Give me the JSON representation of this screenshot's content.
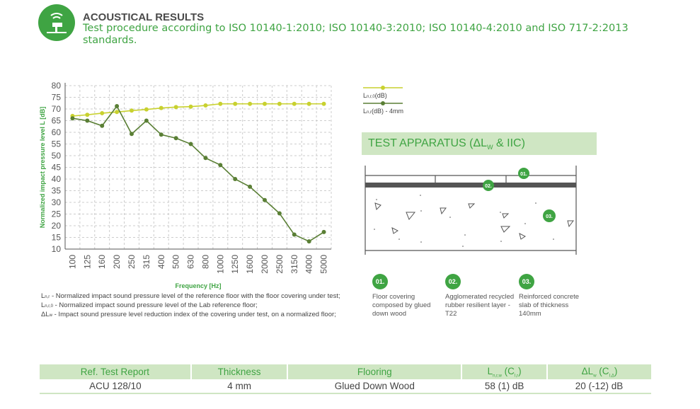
{
  "header": {
    "title": "ACOUSTICAL RESULTS",
    "subtitle": "Test procedure according to ISO 10140-1:2010; ISO 10140-3:2010; ISO 10140-4:2010 and ISO 717-2:2013 standards.",
    "icon": "hammer-impact-sound-icon"
  },
  "colors": {
    "brand": "#3fa443",
    "reference": "#c8d12f",
    "test": "#5a7f35",
    "band": "#cfe6c3"
  },
  "chart_data": {
    "type": "line",
    "xlabel": "Frequency [Hz]",
    "ylabel": "Normalized impact pressure level L [dB]",
    "ylim": [
      10,
      80
    ],
    "yticks": [
      80,
      75,
      70,
      65,
      60,
      55,
      50,
      45,
      40,
      35,
      30,
      25,
      20,
      15,
      10
    ],
    "grid": true,
    "legend_position": "right",
    "categories": [
      "100",
      "125",
      "160",
      "200",
      "250",
      "315",
      "400",
      "500",
      "630",
      "800",
      "1000",
      "1250",
      "1600",
      "2000",
      "2500",
      "3150",
      "4000",
      "5000"
    ],
    "series": [
      {
        "name": "L",
        "name_sub": "n,r,0",
        "name_suffix": "(dB)",
        "values": [
          67,
          67.5,
          68.2,
          68.7,
          69.3,
          69.8,
          70.4,
          70.8,
          71,
          71.5,
          72.2,
          72.2,
          72.2,
          72.2,
          72.2,
          72.2,
          72.2,
          72.2
        ]
      },
      {
        "name": "L",
        "name_sub": "n,r",
        "name_suffix": "(dB) - 4mm",
        "values": [
          66,
          65,
          62.8,
          71.2,
          59.3,
          65,
          59,
          57.5,
          55,
          49,
          46,
          40,
          36.7,
          31,
          25.3,
          16.2,
          13.3,
          17.3
        ]
      }
    ]
  },
  "notes": [
    {
      "sym": "L",
      "sub": "n,r",
      "text": " - Normalized impact sound pressure level of the reference floor with the floor covering under test;"
    },
    {
      "sym": "L",
      "sub": "n,r,0",
      "text": " - Normalized impact sound pressure level of the Lab reference floor;"
    },
    {
      "sym": "ΔL",
      "sub": "w",
      "text": " - Impact sound pressure level reduction index of the covering under test, on a normalized floor;"
    }
  ],
  "apparatus": {
    "title": "TEST APPARATUS (ΔL",
    "title_sub": "W",
    "title_end": " & IIC)",
    "items": [
      {
        "num": "01.",
        "caption": "Floor covering composed by glued down wood"
      },
      {
        "num": "02.",
        "caption": "Agglomerated recycled rubber resilient layer - T22"
      },
      {
        "num": "03.",
        "caption": "Reinforced concrete slab of thickness 140mm"
      }
    ]
  },
  "table": {
    "headers": [
      {
        "t": "Ref. Test Report"
      },
      {
        "t": "Thickness"
      },
      {
        "t": "Flooring"
      },
      {
        "t": "L",
        "s": "n,r,w",
        "e": " (C",
        "s2": "I,r",
        "e2": ")"
      },
      {
        "t": "ΔL",
        "s": "w",
        "e": " (C",
        "s2": "I,Δ",
        "e2": ")"
      }
    ],
    "row": [
      "ACU 128/10",
      "4 mm",
      "Glued Down Wood",
      "58 (1) dB",
      "20 (-12) dB"
    ]
  }
}
